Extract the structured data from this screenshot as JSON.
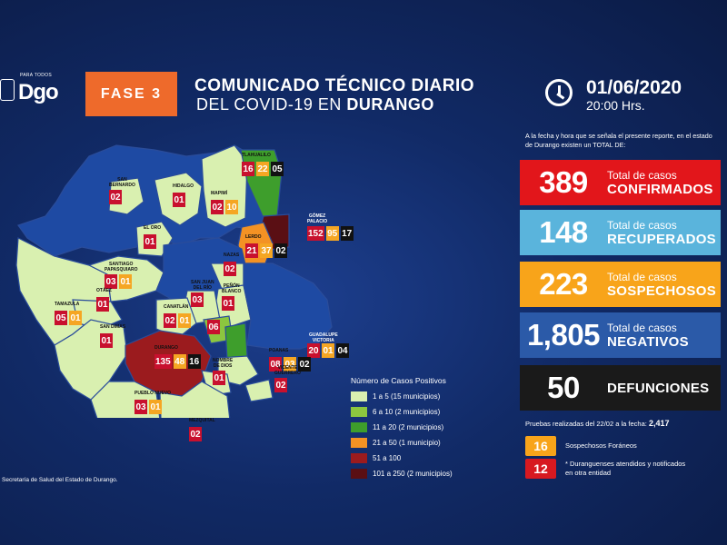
{
  "header": {
    "logo_tag": "PARA TODOS",
    "logo_text": "Dgo",
    "fase": "FASE 3",
    "title_line1": "COMUNICADO TÉCNICO DIARIO",
    "title_line2_prefix": "DEL COVID-19 EN ",
    "title_line2_bold": "DURANGO",
    "date": "01/06/2020",
    "hour": "20:00 Hrs."
  },
  "intro": "A la fecha y hora que se señala el presente reporte, en el estado de Durango existen un TOTAL DE:",
  "stats": [
    {
      "value": "389",
      "label": "Total de casos",
      "big": "CONFIRMADOS",
      "color": "#e2161b"
    },
    {
      "value": "148",
      "label": "Total de casos",
      "big": "RECUPERADOS",
      "color": "#5ab4dc"
    },
    {
      "value": "223",
      "label": "Total de casos",
      "big": "SOSPECHOSOS",
      "color": "#f8a41a"
    },
    {
      "value": "1,805",
      "label": "Total de casos",
      "big": "NEGATIVOS",
      "color": "#2b5aa8"
    },
    {
      "value": "50",
      "label": "",
      "big": "DEFUNCIONES",
      "color": "#1a1a1a"
    }
  ],
  "tests": {
    "label": "Pruebas realizadas del 22/02 a la fecha:",
    "value": "2,417"
  },
  "foreign": [
    {
      "value": "16",
      "text": "Sospechosos Foráneos",
      "color": "#f8a41a"
    },
    {
      "value": "12",
      "text": "* Duranguenses atendidos y notificados en otra entidad",
      "color": "#d71920"
    }
  ],
  "legend": {
    "title": "Número de Casos Positivos",
    "items": [
      {
        "label": "1 a 5",
        "note": "(15 municipios)",
        "color": "#d9f0b0"
      },
      {
        "label": "6 a 10",
        "note": "(2 municipios)",
        "color": "#8cc63f"
      },
      {
        "label": "11 a 20",
        "note": "(2 municipios)",
        "color": "#3e9e2c"
      },
      {
        "label": "21 a 50",
        "note": "(1 municipio)",
        "color": "#f39224"
      },
      {
        "label": "51 a 100",
        "note": "",
        "color": "#9b1b1e"
      },
      {
        "label": "101 a 250",
        "note": "(2 municipios)",
        "color": "#5a0f14"
      }
    ]
  },
  "source": "Secretaría de Salud del Estado de Durango.",
  "municipios": [
    {
      "name": "SAN\nBERNARDO",
      "values": [
        "02"
      ]
    },
    {
      "name": "HIDALGO",
      "values": [
        "01"
      ]
    },
    {
      "name": "TLAHUALILO",
      "values": [
        "16",
        "22",
        "05"
      ]
    },
    {
      "name": "MAPIMÍ",
      "values": [
        "02",
        "10"
      ]
    },
    {
      "name": "GÓMEZ\nPALACIO",
      "values": [
        "152",
        "95",
        "17"
      ]
    },
    {
      "name": "EL ORO",
      "values": [
        "01"
      ]
    },
    {
      "name": "LERDO",
      "values": [
        "21",
        "37",
        "02"
      ]
    },
    {
      "name": "NAZAS",
      "values": [
        "02"
      ]
    },
    {
      "name": "SANTIAGO\nPAPASQUIARO",
      "values": [
        "03",
        "01"
      ]
    },
    {
      "name": "OTÁEZ",
      "values": [
        "01"
      ]
    },
    {
      "name": "TAMAZULA",
      "values": [
        "05",
        "01"
      ]
    },
    {
      "name": "SAN JUAN\nDEL RÍO",
      "values": [
        "03"
      ]
    },
    {
      "name": "PEÑÓN\nBLANCO",
      "values": [
        "01"
      ]
    },
    {
      "name": "CANATLÁN",
      "values": [
        "02",
        "01"
      ]
    },
    {
      "name": "",
      "values": [
        "06"
      ]
    },
    {
      "name": "SAN DIMAS",
      "values": [
        "01"
      ]
    },
    {
      "name": "GUADALUPE\nVICTORIA",
      "values": [
        "20",
        "01",
        "04"
      ]
    },
    {
      "name": "DURANGO",
      "values": [
        "135",
        "48",
        "16"
      ]
    },
    {
      "name": "POANAS",
      "values": [
        "08",
        "03",
        "02"
      ]
    },
    {
      "name": "NOMBRE\nDE DIOS",
      "values": [
        "01"
      ]
    },
    {
      "name": "VICENTE\nGUERRERO",
      "values": [
        "02"
      ]
    },
    {
      "name": "PUEBLO NUEVO",
      "values": [
        "03",
        "01"
      ]
    },
    {
      "name": "MEZQUITAL",
      "values": [
        "02"
      ]
    }
  ]
}
